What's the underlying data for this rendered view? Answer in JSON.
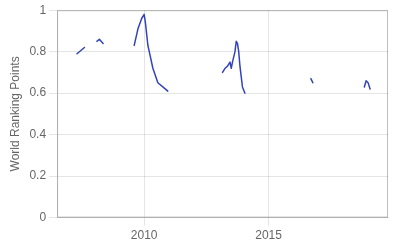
{
  "chart_data": {
    "type": "line",
    "y_label": "World Ranking Points",
    "color": "#3344bb",
    "series": [
      {
        "x": [
          2007.3,
          2007.6
        ],
        "values": [
          0.79,
          0.82
        ]
      },
      {
        "x": [
          2008.1,
          2008.2,
          2008.35
        ],
        "values": [
          0.85,
          0.86,
          0.84
        ]
      },
      {
        "x": [
          2009.6,
          2009.75,
          2009.9,
          2010.0,
          2010.05,
          2010.15,
          2010.35,
          2010.55,
          2010.75,
          2010.95
        ],
        "values": [
          0.83,
          0.91,
          0.96,
          0.98,
          0.94,
          0.83,
          0.72,
          0.65,
          0.63,
          0.61
        ]
      },
      {
        "x": [
          2013.15,
          2013.25,
          2013.35,
          2013.45,
          2013.5,
          2013.55,
          2013.65,
          2013.7,
          2013.75,
          2013.8,
          2013.85,
          2013.95,
          2014.05
        ],
        "values": [
          0.7,
          0.72,
          0.73,
          0.75,
          0.72,
          0.75,
          0.8,
          0.85,
          0.84,
          0.8,
          0.73,
          0.63,
          0.6
        ]
      },
      {
        "x": [
          2016.7,
          2016.78
        ],
        "values": [
          0.67,
          0.65
        ]
      },
      {
        "x": [
          2018.85,
          2018.92,
          2019.0,
          2019.08
        ],
        "values": [
          0.63,
          0.66,
          0.65,
          0.62
        ]
      }
    ],
    "xlim": [
      2006.5,
      2019.8
    ],
    "xticks": [
      2010,
      2015
    ],
    "ylim": [
      0,
      1
    ],
    "yticks": [
      0,
      0.2,
      0.4,
      0.6,
      0.8,
      1
    ],
    "grid": true
  }
}
